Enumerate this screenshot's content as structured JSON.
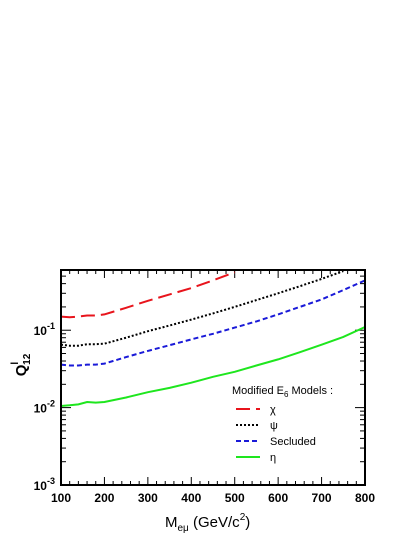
{
  "chart_data": {
    "type": "line",
    "xlabel": {
      "main": "M",
      "sub": "eμ",
      "unit": " (GeV/c",
      "unit_sup": "2",
      "unit_end": ")"
    },
    "ylabel": {
      "main": "Q",
      "sup": "l",
      "sub": "12"
    },
    "xlim": [
      100,
      800
    ],
    "ylim": [
      0.001,
      0.6
    ],
    "yscale": "log",
    "x_ticks": [
      "100",
      "200",
      "300",
      "400",
      "500",
      "600",
      "700",
      "800"
    ],
    "y_ticks": [
      {
        "value": 0.001,
        "base": "10",
        "exp": "-3"
      },
      {
        "value": 0.01,
        "base": "10",
        "exp": "-2"
      },
      {
        "value": 0.1,
        "base": "10",
        "exp": "-1"
      }
    ],
    "legend": {
      "title": "Modified E",
      "title_sub": "6",
      "title_end": " Models :",
      "placement": "bottom-right"
    },
    "series": [
      {
        "name": "χ",
        "color": "#e8141c",
        "dash": "14,6",
        "x": [
          100,
          120,
          140,
          160,
          180,
          200,
          250,
          300,
          350,
          400,
          450,
          500
        ],
        "y": [
          0.15,
          0.147,
          0.15,
          0.155,
          0.155,
          0.16,
          0.195,
          0.24,
          0.29,
          0.35,
          0.44,
          0.56
        ]
      },
      {
        "name": "ψ",
        "color": "#000000",
        "dash": "2,2",
        "x": [
          100,
          120,
          140,
          160,
          180,
          200,
          250,
          300,
          350,
          400,
          450,
          500,
          550,
          600,
          650,
          700,
          750
        ],
        "y": [
          0.065,
          0.063,
          0.063,
          0.066,
          0.066,
          0.067,
          0.08,
          0.097,
          0.115,
          0.137,
          0.165,
          0.2,
          0.245,
          0.3,
          0.37,
          0.46,
          0.58
        ]
      },
      {
        "name": "Secluded",
        "color": "#1a1ad8",
        "dash": "5,3",
        "x": [
          100,
          120,
          140,
          160,
          180,
          200,
          250,
          300,
          350,
          400,
          450,
          500,
          550,
          600,
          650,
          700,
          750,
          800
        ],
        "y": [
          0.036,
          0.035,
          0.035,
          0.036,
          0.036,
          0.037,
          0.045,
          0.054,
          0.064,
          0.076,
          0.09,
          0.108,
          0.13,
          0.16,
          0.2,
          0.25,
          0.33,
          0.44
        ]
      },
      {
        "name": "η",
        "color": "#1ee61e",
        "dash": "",
        "x": [
          100,
          120,
          140,
          160,
          180,
          200,
          250,
          300,
          350,
          400,
          450,
          500,
          550,
          600,
          650,
          700,
          750,
          800
        ],
        "y": [
          0.0105,
          0.0107,
          0.011,
          0.0118,
          0.0116,
          0.0118,
          0.0135,
          0.0158,
          0.018,
          0.021,
          0.025,
          0.029,
          0.035,
          0.042,
          0.052,
          0.065,
          0.082,
          0.11
        ]
      }
    ]
  }
}
